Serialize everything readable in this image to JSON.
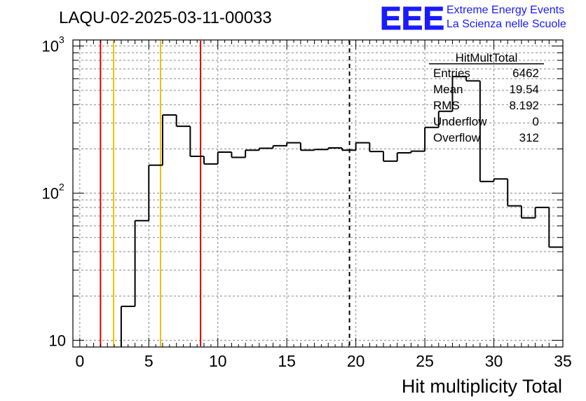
{
  "header": {
    "run_title": "LAQU-02-2025-03-11-00033",
    "logo_text": "EEE",
    "project_line1": "Extreme Energy Events",
    "project_line2": "La Scienza nelle Scuole"
  },
  "stats_box": {
    "title": "HitMultTotal",
    "rows": [
      {
        "label": "Entries",
        "value": "6462"
      },
      {
        "label": "Mean",
        "value": "19.54"
      },
      {
        "label": "RMS",
        "value": "8.192"
      },
      {
        "label": "Underflow",
        "value": "0"
      },
      {
        "label": "Overflow",
        "value": "312"
      }
    ]
  },
  "colors": {
    "red_line": "#dd0000",
    "yellow_line": "#f0c000",
    "logo_blue": "#1a1aff",
    "histogram": "#000000",
    "grid": "#888888"
  },
  "chart_data": {
    "type": "histogram",
    "title": "",
    "xlabel": "Hit multiplicity Total",
    "ylabel": "",
    "xlim": [
      -0.5,
      35
    ],
    "ylim": [
      9,
      1100
    ],
    "y_scale": "log",
    "grid": true,
    "x_ticks": [
      0,
      5,
      10,
      15,
      20,
      25,
      30,
      35
    ],
    "y_ticks": [
      {
        "value": 10,
        "label": "10"
      },
      {
        "value": 100,
        "label": "10",
        "exp": "2"
      },
      {
        "value": 1000,
        "label": "10",
        "exp": "3"
      }
    ],
    "bin_width": 1,
    "bins": [
      {
        "x": 3.5,
        "value": 17
      },
      {
        "x": 4.5,
        "value": 65
      },
      {
        "x": 5.5,
        "value": 155
      },
      {
        "x": 6.5,
        "value": 340
      },
      {
        "x": 7.5,
        "value": 285
      },
      {
        "x": 8.5,
        "value": 178
      },
      {
        "x": 9.5,
        "value": 158
      },
      {
        "x": 10.5,
        "value": 190
      },
      {
        "x": 11.5,
        "value": 175
      },
      {
        "x": 12.5,
        "value": 196
      },
      {
        "x": 13.5,
        "value": 202
      },
      {
        "x": 14.5,
        "value": 210
      },
      {
        "x": 15.5,
        "value": 220
      },
      {
        "x": 16.5,
        "value": 196
      },
      {
        "x": 17.5,
        "value": 198
      },
      {
        "x": 18.5,
        "value": 203
      },
      {
        "x": 19.5,
        "value": 196
      },
      {
        "x": 20.5,
        "value": 220
      },
      {
        "x": 21.5,
        "value": 192
      },
      {
        "x": 22.5,
        "value": 165
      },
      {
        "x": 23.5,
        "value": 188
      },
      {
        "x": 24.5,
        "value": 193
      },
      {
        "x": 25.5,
        "value": 280
      },
      {
        "x": 26.5,
        "value": 360
      },
      {
        "x": 27.5,
        "value": 620
      },
      {
        "x": 28.5,
        "value": 580
      },
      {
        "x": 29.5,
        "value": 120
      },
      {
        "x": 30.5,
        "value": 125
      },
      {
        "x": 31.5,
        "value": 82
      },
      {
        "x": 32.5,
        "value": 68
      },
      {
        "x": 33.5,
        "value": 80
      },
      {
        "x": 34.5,
        "value": 43
      }
    ],
    "markers": [
      {
        "x": 1.5,
        "color": "red"
      },
      {
        "x": 2.45,
        "color": "yellow"
      },
      {
        "x": 5.85,
        "color": "yellow"
      },
      {
        "x": 8.75,
        "color": "red"
      },
      {
        "x": 19.54,
        "color": "black",
        "style": "dashed"
      }
    ]
  }
}
